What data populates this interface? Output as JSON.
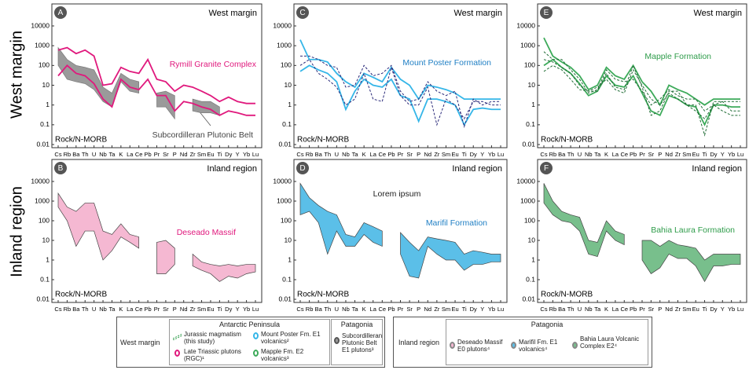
{
  "row_labels": [
    "West margin",
    "Inland region"
  ],
  "chart_data": [
    {
      "type": "line",
      "letter": "A",
      "title": "West margin",
      "ylabel": "Rock/N-MORB",
      "log_scale": true,
      "ylim": [
        0.01,
        10000
      ],
      "yticks": [
        0.01,
        0.1,
        1,
        10,
        100,
        1000,
        10000
      ],
      "categories": [
        "Cs",
        "Rb",
        "Ba",
        "Th",
        "U",
        "Nb",
        "Ta",
        "K",
        "La",
        "Ce",
        "Pb",
        "Pr",
        "Sr",
        "P",
        "Nd",
        "Zr",
        "Sm",
        "Eu",
        "Ti",
        "Dy",
        "Y",
        "Yb",
        "Lu"
      ],
      "annotations": [
        {
          "text": "Rymill Granite Complex",
          "color": "#e0197d"
        },
        {
          "text": "Subcordilleran Plutonic Belt",
          "color": "#444444"
        }
      ],
      "bands": [
        {
          "color": "#7a7a7a",
          "fill": "#9a9a9a",
          "high": [
            800,
            200,
            100,
            80,
            60,
            8,
            4,
            40,
            20,
            15,
            null,
            4,
            5,
            3,
            null,
            2,
            1.5,
            1.5,
            0.8,
            null,
            null,
            null,
            null
          ],
          "low": [
            100,
            20,
            15,
            12,
            6,
            1.5,
            0.8,
            15,
            5,
            4,
            null,
            0.8,
            0.8,
            0.2,
            null,
            0.5,
            0.4,
            0.4,
            0.3,
            null,
            null,
            null,
            null
          ]
        },
        {
          "color": "#e0197d",
          "fill": "none",
          "high": [
            600,
            800,
            400,
            600,
            300,
            10,
            12,
            80,
            50,
            40,
            200,
            20,
            15,
            5,
            10,
            8,
            5,
            3,
            1.5,
            2.5,
            1.5,
            1.2,
            1.2
          ],
          "low": [
            30,
            100,
            40,
            30,
            12,
            2,
            0.8,
            20,
            8,
            6,
            20,
            3,
            3,
            0.5,
            1.5,
            1.2,
            0.8,
            0.6,
            0.3,
            0.5,
            0.4,
            0.3,
            0.3
          ]
        }
      ],
      "lines": []
    },
    {
      "type": "line",
      "letter": "B",
      "title": "Inland region",
      "ylabel": "Rock/N-MORB",
      "log_scale": true,
      "ylim": [
        0.01,
        10000
      ],
      "yticks": [
        0.01,
        0.1,
        1,
        10,
        100,
        1000,
        10000
      ],
      "categories": [
        "Cs",
        "Rb",
        "Ba",
        "Th",
        "U",
        "Nb",
        "Ta",
        "K",
        "La",
        "Ce",
        "Pb",
        "Pr",
        "Sr",
        "P",
        "Nd",
        "Zr",
        "Sm",
        "Eu",
        "Ti",
        "Dy",
        "Y",
        "Yb",
        "Lu"
      ],
      "annotations": [
        {
          "text": "Deseado Massif",
          "color": "#e0197d"
        }
      ],
      "bands": [
        {
          "color": "#444444",
          "fill": "#f5b8d2",
          "high": [
            2500,
            500,
            300,
            800,
            800,
            30,
            20,
            70,
            20,
            15,
            null,
            8,
            10,
            4,
            null,
            2,
            0.8,
            0.6,
            0.5,
            0.6,
            0.5,
            0.6,
            0.6
          ],
          "low": [
            500,
            100,
            5,
            30,
            30,
            1,
            3,
            15,
            8,
            4,
            null,
            0.2,
            0.2,
            0.6,
            null,
            0.5,
            0.3,
            0.2,
            0.08,
            0.15,
            0.12,
            0.2,
            0.25
          ]
        }
      ],
      "lines": []
    },
    {
      "type": "line",
      "letter": "C",
      "title": "West margin",
      "ylabel": "Rock/N-MORB",
      "log_scale": true,
      "ylim": [
        0.01,
        10000
      ],
      "yticks": [
        0.01,
        0.1,
        1,
        10,
        100,
        1000,
        10000
      ],
      "categories": [
        "Cs",
        "Rb",
        "Ba",
        "Th",
        "U",
        "Nb",
        "Ta",
        "K",
        "La",
        "Ce",
        "Pb",
        "Pr",
        "Sr",
        "P",
        "Nd",
        "Zr",
        "Sm",
        "Eu",
        "Ti",
        "Dy",
        "Y",
        "Yb",
        "Lu"
      ],
      "annotations": [
        {
          "text": "Mount Poster Formation",
          "color": "#1f7fc4"
        }
      ],
      "bands": [
        {
          "color": "#35b6e8",
          "fill": "none",
          "high": [
            2000,
            200,
            200,
            150,
            40,
            15,
            8,
            40,
            25,
            15,
            80,
            20,
            10,
            2,
            10,
            8,
            6,
            4,
            2,
            2,
            2,
            2,
            2
          ],
          "low": [
            50,
            100,
            60,
            40,
            15,
            0.6,
            5,
            20,
            10,
            8,
            20,
            3,
            2,
            0.15,
            2,
            2,
            1.5,
            1,
            0.1,
            0.6,
            0.7,
            0.6,
            0.6
          ]
        }
      ],
      "lines": [
        {
          "color": "#2a2a7a",
          "values": [
            300,
            300,
            200,
            100,
            80,
            8,
            10,
            100,
            30,
            40,
            100,
            5,
            1.5,
            2,
            15,
            5,
            3,
            5,
            0.08,
            2,
            1,
            1.5,
            1.5
          ]
        },
        {
          "color": "#2a2a7a",
          "values": [
            100,
            200,
            40,
            20,
            8,
            1,
            2,
            40,
            2,
            1.5,
            80,
            3,
            1,
            1,
            8,
            0.1,
            2,
            1,
            0.2,
            1.5,
            1.5,
            1,
            1
          ]
        }
      ]
    },
    {
      "type": "line",
      "letter": "D",
      "title": "Inland region",
      "ylabel": "Rock/N-MORB",
      "log_scale": true,
      "ylim": [
        0.01,
        10000
      ],
      "yticks": [
        0.01,
        0.1,
        1,
        10,
        100,
        1000,
        10000
      ],
      "categories": [
        "Cs",
        "Rb",
        "Ba",
        "Th",
        "U",
        "Nb",
        "Ta",
        "K",
        "La",
        "Ce",
        "Pb",
        "Pr",
        "Sr",
        "P",
        "Nd",
        "Zr",
        "Sm",
        "Eu",
        "Ti",
        "Dy",
        "Y",
        "Yb",
        "Lu"
      ],
      "annotations": [
        {
          "text": "Lorem ipsum",
          "color": "#222222"
        },
        {
          "text": "Marifil Formation",
          "color": "#1f7fc4"
        }
      ],
      "bands": [
        {
          "color": "#444444",
          "fill": "#5bbfe8",
          "high": [
            8000,
            1500,
            600,
            300,
            200,
            20,
            15,
            80,
            50,
            30,
            null,
            25,
            8,
            3,
            15,
            12,
            10,
            8,
            2,
            3,
            2.5,
            2,
            2
          ],
          "low": [
            200,
            300,
            80,
            2,
            30,
            5,
            5,
            20,
            8,
            5,
            null,
            2,
            0.15,
            0.12,
            5,
            2,
            1,
            1,
            0.3,
            0.6,
            0.6,
            0.8,
            0.8
          ]
        }
      ],
      "lines": []
    },
    {
      "type": "line",
      "letter": "E",
      "title": "West margin",
      "ylabel": "Rock/N-MORB",
      "log_scale": true,
      "ylim": [
        0.01,
        10000
      ],
      "yticks": [
        0.01,
        0.1,
        1,
        10,
        100,
        1000,
        10000
      ],
      "categories": [
        "Cs",
        "Rb",
        "Ba",
        "Th",
        "U",
        "Nb",
        "Ta",
        "K",
        "La",
        "Ce",
        "Pb",
        "Pr",
        "Sr",
        "P",
        "Nd",
        "Zr",
        "Sm",
        "Eu",
        "Ti",
        "Dy",
        "Y",
        "Yb",
        "Lu"
      ],
      "annotations": [
        {
          "text": "Mapple Formation",
          "color": "#2e9c4a"
        }
      ],
      "bands": [
        {
          "color": "#3daa5a",
          "fill": "none",
          "high": [
            2500,
            300,
            150,
            80,
            30,
            6,
            10,
            80,
            30,
            20,
            100,
            15,
            5,
            1,
            10,
            6,
            4,
            2,
            1,
            2,
            2,
            2,
            2
          ],
          "low": [
            100,
            200,
            80,
            40,
            12,
            3,
            5,
            30,
            10,
            8,
            30,
            4,
            0.5,
            0.3,
            3,
            2,
            1,
            0.8,
            0.1,
            1,
            1,
            0.8,
            0.8
          ]
        }
      ],
      "lines": [
        {
          "color": "#1e6b34",
          "values": [
            200,
            150,
            80,
            40,
            10,
            5,
            5,
            40,
            8,
            6,
            100,
            8,
            0.3,
            0.5,
            5,
            5,
            1,
            1,
            0.03,
            1.5,
            1.5,
            0.5,
            0.5
          ]
        },
        {
          "color": "#1e6b34",
          "values": [
            50,
            100,
            60,
            20,
            6,
            5,
            8,
            20,
            6,
            4,
            60,
            10,
            2,
            1,
            4,
            2,
            1,
            0.5,
            0.2,
            1,
            0.5,
            0.3,
            0.3
          ]
        },
        {
          "color": "#1e6b34",
          "values": [
            500,
            200,
            200,
            60,
            20,
            4,
            6,
            60,
            20,
            15,
            20,
            5,
            1,
            2,
            6,
            3,
            2,
            2,
            0.5,
            1,
            1.5,
            1.5,
            1.5
          ]
        }
      ]
    },
    {
      "type": "line",
      "letter": "F",
      "title": "Inland region",
      "ylabel": "Rock/N-MORB",
      "log_scale": true,
      "ylim": [
        0.01,
        10000
      ],
      "yticks": [
        0.01,
        0.1,
        1,
        10,
        100,
        1000,
        10000
      ],
      "categories": [
        "Cs",
        "Rb",
        "Ba",
        "Th",
        "U",
        "Nb",
        "Ta",
        "K",
        "La",
        "Ce",
        "Pb",
        "Pr",
        "Sr",
        "P",
        "Nd",
        "Zr",
        "Sm",
        "Eu",
        "Ti",
        "Dy",
        "Y",
        "Yb",
        "Lu"
      ],
      "annotations": [
        {
          "text": "Bahia Laura Formation",
          "color": "#2e9c4a"
        }
      ],
      "bands": [
        {
          "color": "#444444",
          "fill": "#78bf8c",
          "high": [
            8000,
            1000,
            300,
            200,
            150,
            10,
            8,
            100,
            30,
            20,
            null,
            10,
            10,
            5,
            10,
            6,
            5,
            4,
            1,
            2,
            2,
            2,
            2
          ],
          "low": [
            800,
            200,
            100,
            80,
            30,
            2,
            1.5,
            30,
            10,
            6,
            null,
            1,
            0.2,
            0.4,
            2,
            1.2,
            1.2,
            0.5,
            0.08,
            0.5,
            0.5,
            0.6,
            0.6
          ]
        }
      ],
      "lines": []
    }
  ],
  "legend_left": {
    "region": "West margin",
    "antarctic_header": "Antarctic Peninsula",
    "patagonia_header": "Patagonia",
    "jurassic": "Jurassic magmatism (this study)",
    "triassic": "Late Triassic plutons (RGC)¹",
    "poster": "Mount Poster Fm. E1 volcanics²",
    "mapple": "Mapple Fm. E2 volcanics³",
    "subcordilleran": "Subcordilleran Plutonic Belt E1 plutons³"
  },
  "legend_right": {
    "region": "Inland region",
    "patagonia_header": "Patagonia",
    "deseado": "Deseado Massif E0 plutons⁴",
    "marifil": "Marifil Fm. E1 volcanics⁴",
    "bahia": "Bahia Laura Volcanic Complex E2⁴"
  }
}
